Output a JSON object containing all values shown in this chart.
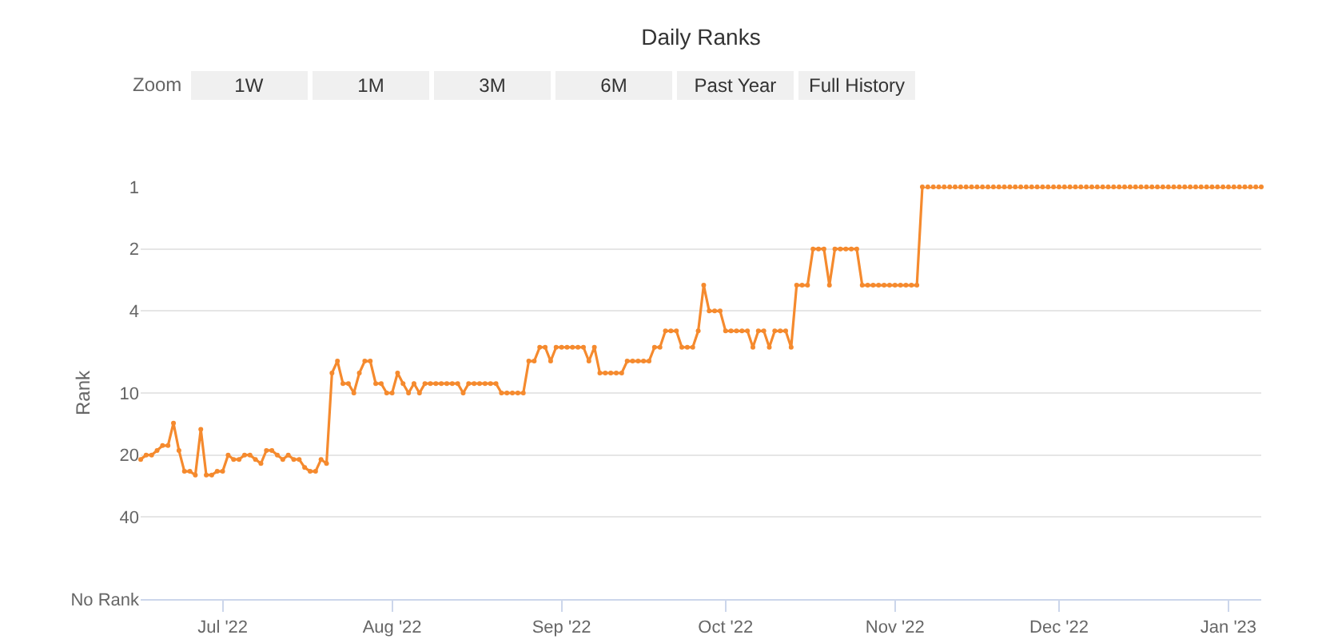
{
  "chart_data": {
    "type": "line",
    "title": "Daily Ranks",
    "ylabel": "Rank",
    "annotations": [
      "Zoom",
      "1W",
      "1M",
      "3M",
      "6M",
      "Past Year",
      "Full History"
    ],
    "x": [
      "2022-06-16",
      "2022-06-17",
      "2022-06-18",
      "2022-06-19",
      "2022-06-20",
      "2022-06-21",
      "2022-06-22",
      "2022-06-23",
      "2022-06-24",
      "2022-06-25",
      "2022-06-26",
      "2022-06-27",
      "2022-06-28",
      "2022-06-29",
      "2022-06-30",
      "2022-07-01",
      "2022-07-02",
      "2022-07-03",
      "2022-07-04",
      "2022-07-05",
      "2022-07-06",
      "2022-07-07",
      "2022-07-08",
      "2022-07-09",
      "2022-07-10",
      "2022-07-11",
      "2022-07-12",
      "2022-07-13",
      "2022-07-14",
      "2022-07-15",
      "2022-07-16",
      "2022-07-17",
      "2022-07-18",
      "2022-07-19",
      "2022-07-20",
      "2022-07-21",
      "2022-07-22",
      "2022-07-23",
      "2022-07-24",
      "2022-07-25",
      "2022-07-26",
      "2022-07-27",
      "2022-07-28",
      "2022-07-29",
      "2022-07-30",
      "2022-07-31",
      "2022-08-01",
      "2022-08-02",
      "2022-08-03",
      "2022-08-04",
      "2022-08-05",
      "2022-08-06",
      "2022-08-07",
      "2022-08-08",
      "2022-08-09",
      "2022-08-10",
      "2022-08-11",
      "2022-08-12",
      "2022-08-13",
      "2022-08-14",
      "2022-08-15",
      "2022-08-16",
      "2022-08-17",
      "2022-08-18",
      "2022-08-19",
      "2022-08-20",
      "2022-08-21",
      "2022-08-22",
      "2022-08-23",
      "2022-08-24",
      "2022-08-25",
      "2022-08-26",
      "2022-08-27",
      "2022-08-28",
      "2022-08-29",
      "2022-08-30",
      "2022-08-31",
      "2022-09-01",
      "2022-09-02",
      "2022-09-03",
      "2022-09-04",
      "2022-09-05",
      "2022-09-06",
      "2022-09-07",
      "2022-09-08",
      "2022-09-09",
      "2022-09-10",
      "2022-09-11",
      "2022-09-12",
      "2022-09-13",
      "2022-09-14",
      "2022-09-15",
      "2022-09-16",
      "2022-09-17",
      "2022-09-18",
      "2022-09-19",
      "2022-09-20",
      "2022-09-21",
      "2022-09-22",
      "2022-09-23",
      "2022-09-24",
      "2022-09-25",
      "2022-09-26",
      "2022-09-27",
      "2022-09-28",
      "2022-09-29",
      "2022-09-30",
      "2022-10-01",
      "2022-10-02",
      "2022-10-03",
      "2022-10-04",
      "2022-10-05",
      "2022-10-06",
      "2022-10-07",
      "2022-10-08",
      "2022-10-09",
      "2022-10-10",
      "2022-10-11",
      "2022-10-12",
      "2022-10-13",
      "2022-10-14",
      "2022-10-15",
      "2022-10-16",
      "2022-10-17",
      "2022-10-18",
      "2022-10-19",
      "2022-10-20",
      "2022-10-21",
      "2022-10-22",
      "2022-10-23",
      "2022-10-24",
      "2022-10-25",
      "2022-10-26",
      "2022-10-27",
      "2022-10-28",
      "2022-10-29",
      "2022-10-30",
      "2022-10-31",
      "2022-11-01",
      "2022-11-02",
      "2022-11-03",
      "2022-11-04",
      "2022-11-05",
      "2022-11-06",
      "2022-11-07",
      "2022-11-08",
      "2022-11-09",
      "2022-11-10",
      "2022-11-11",
      "2022-11-12",
      "2022-11-13",
      "2022-11-14",
      "2022-11-15",
      "2022-11-16",
      "2022-11-17",
      "2022-11-18",
      "2022-11-19",
      "2022-11-20",
      "2022-11-21",
      "2022-11-22",
      "2022-11-23",
      "2022-11-24",
      "2022-11-25",
      "2022-11-26",
      "2022-11-27",
      "2022-11-28",
      "2022-11-29",
      "2022-11-30",
      "2022-12-01",
      "2022-12-02",
      "2022-12-03",
      "2022-12-04",
      "2022-12-05",
      "2022-12-06",
      "2022-12-07",
      "2022-12-08",
      "2022-12-09",
      "2022-12-10",
      "2022-12-11",
      "2022-12-12",
      "2022-12-13",
      "2022-12-14",
      "2022-12-15",
      "2022-12-16",
      "2022-12-17",
      "2022-12-18",
      "2022-12-19",
      "2022-12-20",
      "2022-12-21",
      "2022-12-22",
      "2022-12-23",
      "2022-12-24",
      "2022-12-25",
      "2022-12-26",
      "2022-12-27",
      "2022-12-28",
      "2022-12-29",
      "2022-12-30",
      "2022-12-31",
      "2023-01-01",
      "2023-01-02",
      "2023-01-03",
      "2023-01-04",
      "2023-01-05",
      "2023-01-06",
      "2023-01-07"
    ],
    "series": [
      {
        "color": "#f58a2e",
        "values": [
          21,
          20,
          20,
          19,
          18,
          18,
          14,
          19,
          24,
          24,
          25,
          15,
          25,
          25,
          24,
          24,
          20,
          21,
          21,
          20,
          20,
          21,
          22,
          19,
          19,
          20,
          21,
          20,
          21,
          21,
          23,
          24,
          24,
          21,
          22,
          8,
          7,
          9,
          9,
          10,
          8,
          7,
          7,
          9,
          9,
          10,
          10,
          8,
          9,
          10,
          9,
          10,
          9,
          9,
          9,
          9,
          9,
          9,
          9,
          10,
          9,
          9,
          9,
          9,
          9,
          9,
          10,
          10,
          10,
          10,
          10,
          7,
          7,
          6,
          6,
          7,
          6,
          6,
          6,
          6,
          6,
          6,
          7,
          6,
          8,
          8,
          8,
          8,
          8,
          7,
          7,
          7,
          7,
          7,
          6,
          6,
          5,
          5,
          5,
          6,
          6,
          6,
          5,
          3,
          4,
          4,
          4,
          5,
          5,
          5,
          5,
          5,
          6,
          5,
          5,
          6,
          5,
          5,
          5,
          6,
          3,
          3,
          3,
          2,
          2,
          2,
          3,
          2,
          2,
          2,
          2,
          2,
          3,
          3,
          3,
          3,
          3,
          3,
          3,
          3,
          3,
          3,
          3,
          1,
          1,
          1,
          1,
          1,
          1,
          1,
          1,
          1,
          1,
          1,
          1,
          1,
          1,
          1,
          1,
          1,
          1,
          1,
          1,
          1,
          1,
          1,
          1,
          1,
          1,
          1,
          1,
          1,
          1,
          1,
          1,
          1,
          1,
          1,
          1,
          1,
          1,
          1,
          1,
          1,
          1,
          1,
          1,
          1,
          1,
          1,
          1,
          1,
          1,
          1,
          1,
          1,
          1,
          1,
          1,
          1,
          1,
          1,
          1,
          1,
          1,
          1
        ]
      }
    ],
    "xlim": [
      "2022-06-16",
      "2023-01-07"
    ],
    "xticks": [
      {
        "value": "2022-07-01",
        "label": "Jul '22"
      },
      {
        "value": "2022-08-01",
        "label": "Aug '22"
      },
      {
        "value": "2022-09-01",
        "label": "Sep '22"
      },
      {
        "value": "2022-10-01",
        "label": "Oct '22"
      },
      {
        "value": "2022-11-01",
        "label": "Nov '22"
      },
      {
        "value": "2022-12-01",
        "label": "Dec '22"
      },
      {
        "value": "2023-01-01",
        "label": "Jan '23"
      }
    ],
    "ylim": [
      100,
      1
    ],
    "yticks": [
      1,
      2,
      4,
      10,
      20,
      40,
      {
        "value": 100,
        "label": "No Rank"
      }
    ],
    "log": true,
    "grid": "y",
    "marker": "circle",
    "line_style": "solid"
  }
}
